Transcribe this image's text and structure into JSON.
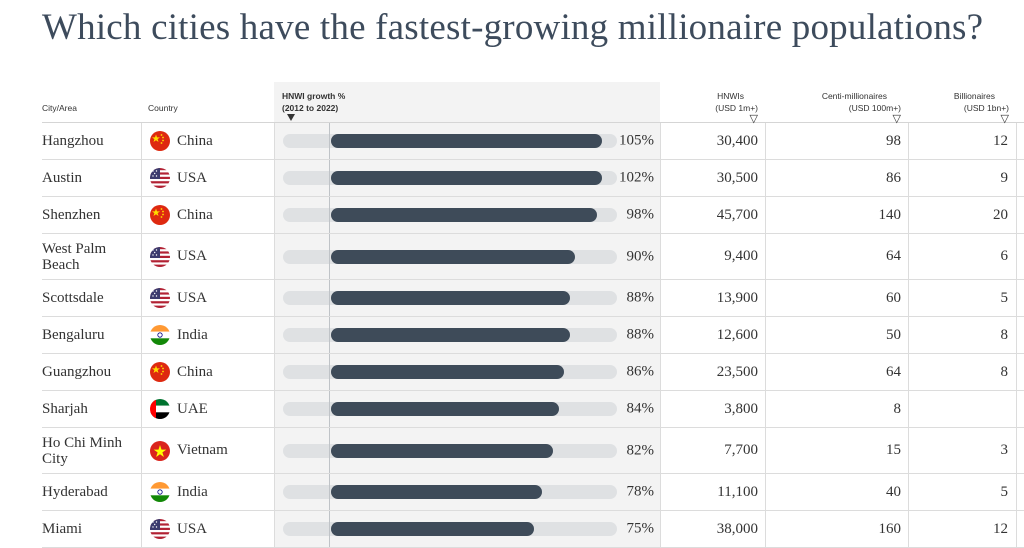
{
  "title": "Which cities have the fastest-growing millionaire populations?",
  "headers": {
    "city": "City/Area",
    "country": "Country",
    "growth_line1": "HNWI growth %",
    "growth_line2": "(2012 to 2022)",
    "hnwi_line1": "HNWIs",
    "hnwi_line2": "(USD 1m+)",
    "centi_line1": "Centi-millionaires",
    "centi_line2": "(USD 100m+)",
    "bill_line1": "Billionaires",
    "bill_line2": "(USD 1bn+)"
  },
  "colors": {
    "bar": "#3e4b59",
    "track": "#dfe1e3",
    "column_bg": "#f3f3f3",
    "title": "#3d4b5c"
  },
  "chart_data": {
    "type": "table",
    "title": "Which cities have the fastest-growing millionaire populations?",
    "columns": [
      "City/Area",
      "Country",
      "HNWI growth % (2012 to 2022)",
      "HNWIs (USD 1m+)",
      "Centi-millionaires (USD 100m+)",
      "Billionaires (USD 1bn+)"
    ],
    "growth_scale_max": 100,
    "rows": [
      {
        "city": "Hangzhou",
        "country": "China",
        "flag": "china-flag-icon",
        "growth": 105,
        "growth_label": "105%",
        "hnwi": "30,400",
        "centi": "98",
        "bill": "12"
      },
      {
        "city": "Austin",
        "country": "USA",
        "flag": "usa-flag-icon",
        "growth": 102,
        "growth_label": "102%",
        "hnwi": "30,500",
        "centi": "86",
        "bill": "9"
      },
      {
        "city": "Shenzhen",
        "country": "China",
        "flag": "china-flag-icon",
        "growth": 98,
        "growth_label": "98%",
        "hnwi": "45,700",
        "centi": "140",
        "bill": "20"
      },
      {
        "city": "West Palm Beach",
        "country": "USA",
        "flag": "usa-flag-icon",
        "growth": 90,
        "growth_label": "90%",
        "hnwi": "9,400",
        "centi": "64",
        "bill": "6"
      },
      {
        "city": "Scottsdale",
        "country": "USA",
        "flag": "usa-flag-icon",
        "growth": 88,
        "growth_label": "88%",
        "hnwi": "13,900",
        "centi": "60",
        "bill": "5"
      },
      {
        "city": "Bengaluru",
        "country": "India",
        "flag": "india-flag-icon",
        "growth": 88,
        "growth_label": "88%",
        "hnwi": "12,600",
        "centi": "50",
        "bill": "8"
      },
      {
        "city": "Guangzhou",
        "country": "China",
        "flag": "china-flag-icon",
        "growth": 86,
        "growth_label": "86%",
        "hnwi": "23,500",
        "centi": "64",
        "bill": "8"
      },
      {
        "city": "Sharjah",
        "country": "UAE",
        "flag": "uae-flag-icon",
        "growth": 84,
        "growth_label": "84%",
        "hnwi": "3,800",
        "centi": "8",
        "bill": ""
      },
      {
        "city": "Ho Chi Minh City",
        "country": "Vietnam",
        "flag": "vietnam-flag-icon",
        "growth": 82,
        "growth_label": "82%",
        "hnwi": "7,700",
        "centi": "15",
        "bill": "3"
      },
      {
        "city": "Hyderabad",
        "country": "India",
        "flag": "india-flag-icon",
        "growth": 78,
        "growth_label": "78%",
        "hnwi": "11,100",
        "centi": "40",
        "bill": "5"
      },
      {
        "city": "Miami",
        "country": "USA",
        "flag": "usa-flag-icon",
        "growth": 75,
        "growth_label": "75%",
        "hnwi": "38,000",
        "centi": "160",
        "bill": "12"
      }
    ]
  }
}
